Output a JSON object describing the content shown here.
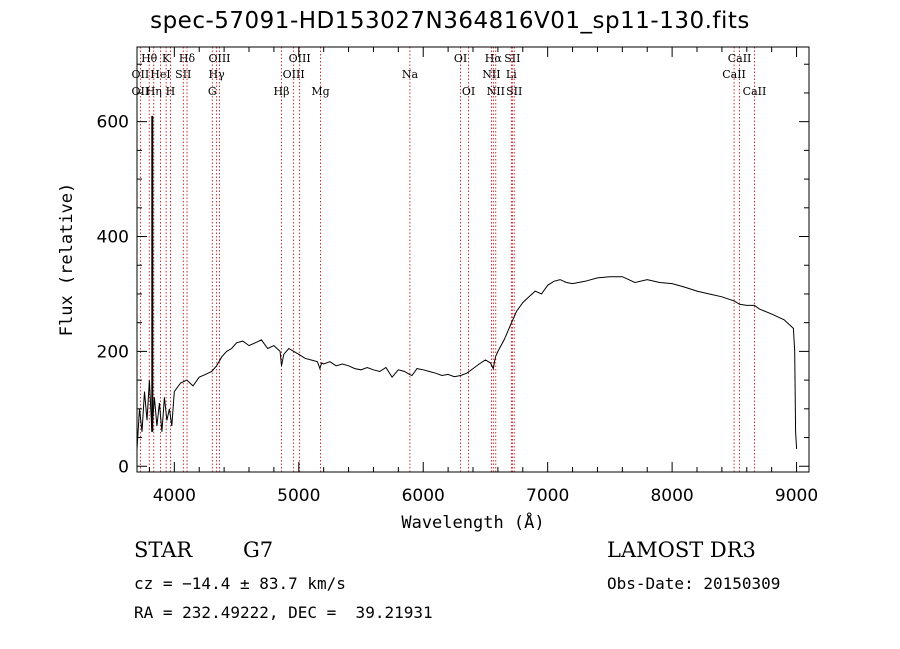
{
  "title": "spec-57091-HD153027N364816V01_sp11-130.fits",
  "info": {
    "class": "STAR",
    "subclass": "G7",
    "survey": "LAMOST DR3",
    "cz": "cz = −14.4 ± 83.7 km/s",
    "obs_date": "Obs-Date: 20150309",
    "radec": "RA = 232.49222, DEC =  39.21931"
  },
  "chart_data": {
    "type": "line",
    "title": "spec-57091-HD153027N364816V01_sp11-130.fits",
    "xlabel": "Wavelength (Å)",
    "ylabel": "Flux (relative)",
    "xlim": [
      3700,
      9100
    ],
    "ylim": [
      -10,
      730
    ],
    "xticks": [
      4000,
      5000,
      6000,
      7000,
      8000,
      9000
    ],
    "yticks": [
      0,
      200,
      400,
      600
    ],
    "grid": false,
    "series": [
      {
        "x": [
          3700,
          3720,
          3740,
          3760,
          3780,
          3800,
          3820,
          3840,
          3860,
          3880,
          3900,
          3920,
          3940,
          3960,
          3980,
          4000,
          4050,
          4100,
          4150,
          4200,
          4250,
          4300,
          4340,
          4380,
          4420,
          4460,
          4500,
          4550,
          4600,
          4650,
          4700,
          4750,
          4800,
          4850,
          4861,
          4880,
          4920,
          4960,
          5000,
          5050,
          5100,
          5150,
          5170,
          5183,
          5200,
          5250,
          5300,
          5350,
          5400,
          5450,
          5500,
          5550,
          5600,
          5650,
          5700,
          5750,
          5800,
          5850,
          5890,
          5910,
          5950,
          6000,
          6050,
          6100,
          6150,
          6200,
          6250,
          6300,
          6350,
          6400,
          6450,
          6500,
          6540,
          6563,
          6580,
          6600,
          6650,
          6700,
          6750,
          6800,
          6850,
          6900,
          6950,
          7000,
          7050,
          7100,
          7150,
          7200,
          7300,
          7400,
          7500,
          7600,
          7650,
          7700,
          7800,
          7900,
          8000,
          8100,
          8200,
          8300,
          8400,
          8498,
          8542,
          8600,
          8662,
          8700,
          8800,
          8850,
          8900,
          8950,
          8975,
          8985,
          8992,
          9000
        ],
        "y": [
          30,
          100,
          60,
          130,
          80,
          150,
          60,
          120,
          70,
          110,
          60,
          120,
          80,
          100,
          70,
          130,
          145,
          150,
          140,
          155,
          160,
          165,
          175,
          190,
          200,
          205,
          215,
          218,
          210,
          215,
          220,
          205,
          210,
          200,
          175,
          195,
          205,
          200,
          195,
          188,
          185,
          182,
          170,
          180,
          178,
          182,
          175,
          178,
          175,
          170,
          168,
          172,
          168,
          165,
          172,
          155,
          168,
          165,
          160,
          158,
          170,
          168,
          165,
          162,
          158,
          160,
          156,
          158,
          162,
          170,
          178,
          185,
          180,
          170,
          190,
          200,
          220,
          245,
          270,
          285,
          295,
          305,
          300,
          315,
          322,
          325,
          320,
          318,
          322,
          328,
          330,
          330,
          325,
          320,
          325,
          320,
          318,
          312,
          305,
          300,
          295,
          288,
          282,
          280,
          280,
          274,
          265,
          260,
          255,
          245,
          240,
          200,
          60,
          30
        ]
      }
    ],
    "line_annotations": {
      "top_row1": [
        {
          "label": "Hθ",
          "wavelength": 3798
        },
        {
          "label": "K",
          "wavelength": 3934
        },
        {
          "label": "Hδ",
          "wavelength": 4102
        },
        {
          "label": "OIII",
          "wavelength": 4363
        },
        {
          "label": "OIII",
          "wavelength": 5007
        },
        {
          "label": "OI",
          "wavelength": 6300
        },
        {
          "label": "Hα",
          "wavelength": 6563
        },
        {
          "label": "SII",
          "wavelength": 6716
        },
        {
          "label": "CaII",
          "wavelength": 8542
        }
      ],
      "top_row2": [
        {
          "label": "OII",
          "wavelength": 3727
        },
        {
          "label": "HeI",
          "wavelength": 3889
        },
        {
          "label": "SII",
          "wavelength": 4072
        },
        {
          "label": "Hγ",
          "wavelength": 4340
        },
        {
          "label": "OIII",
          "wavelength": 4959
        },
        {
          "label": "Na",
          "wavelength": 5893
        },
        {
          "label": "NII",
          "wavelength": 6548
        },
        {
          "label": "Li",
          "wavelength": 6708
        },
        {
          "label": "CaII",
          "wavelength": 8498
        }
      ],
      "top_row3": [
        {
          "label": "OII",
          "wavelength": 3727
        },
        {
          "label": "Hη",
          "wavelength": 3835
        },
        {
          "label": "H",
          "wavelength": 3969
        },
        {
          "label": "G",
          "wavelength": 4305
        },
        {
          "label": "Hβ",
          "wavelength": 4861
        },
        {
          "label": "Mg",
          "wavelength": 5175
        },
        {
          "label": "OI",
          "wavelength": 6364
        },
        {
          "label": "NII",
          "wavelength": 6583
        },
        {
          "label": "SII",
          "wavelength": 6731
        },
        {
          "label": "CaII",
          "wavelength": 8662
        }
      ]
    },
    "marker_lines": [
      3727,
      3798,
      3835,
      3889,
      3934,
      3969,
      4072,
      4102,
      4305,
      4340,
      4363,
      4861,
      4959,
      5007,
      5175,
      5893,
      6300,
      6364,
      6548,
      6563,
      6583,
      6708,
      6716,
      6731,
      8498,
      8542,
      8662
    ],
    "colors": {
      "marker": "#c00000",
      "spectrum": "#000000"
    }
  }
}
